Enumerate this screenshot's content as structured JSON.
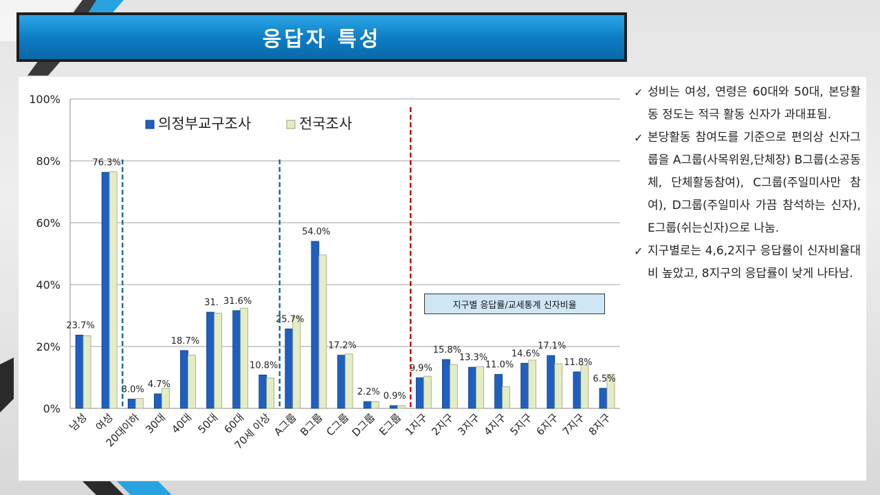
{
  "title": "응답자 특성",
  "legend": {
    "series1": "의정부교구조사",
    "series2": "전국조사"
  },
  "annotation_box": "지구별 응답률/교세통계 신자비율",
  "bullets": [
    "성비는 여성, 연령은 60대와 50대, 본당활동 정도는 적극 활동 신자가 과대표됨.",
    "본당활동 참여도를 기준으로 편의상 신자그룹을 A그룹(사목위원,단체장) B그룹(소공동체, 단체활동참여), C그룹(주일미사만 참여), D그룹(주일미사 가끔 참석하는 신자), E그룹(쉬는신자)으로 나눔.",
    "지구별로는 4,6,2지구 응답률이 신자비율대비 높았고, 8지구의 응답률이 낮게 나타남."
  ],
  "chart_data": {
    "type": "bar",
    "categories": [
      "남성",
      "여성",
      "20대이하",
      "30대",
      "40대",
      "50대",
      "60대",
      "70세 이상",
      "A그룹",
      "B그룹",
      "C그룹",
      "D그룹",
      "E그룹",
      "1지구",
      "2지구",
      "3지구",
      "4지구",
      "5지구",
      "6지구",
      "7지구",
      "8지구"
    ],
    "series": [
      {
        "name": "의정부교구조사",
        "color": "#1f5fbf",
        "values": [
          23.7,
          76.3,
          3.0,
          4.7,
          18.7,
          31.1,
          31.6,
          10.8,
          25.7,
          54.0,
          17.2,
          2.2,
          0.9,
          9.9,
          15.8,
          13.3,
          11.0,
          14.6,
          17.1,
          11.8,
          6.5
        ]
      },
      {
        "name": "전국조사",
        "color": "#e3ecc4",
        "values": [
          23.5,
          76.5,
          3.2,
          6.5,
          17.2,
          30.8,
          32.4,
          9.8,
          29.6,
          49.6,
          17.6,
          2.2,
          0.9,
          10.4,
          14.2,
          13.5,
          7.0,
          15.6,
          14.4,
          14.0,
          11.0
        ]
      }
    ],
    "data_labels": [
      "23.7%",
      "76.3%",
      "3.0%",
      "4.7%",
      "18.7%",
      "31.",
      "31.6%",
      "10.8%",
      "25.7%",
      "54.0%",
      "17.2%",
      "2.2%",
      "0.9%",
      "9.9%",
      "15.8%",
      "13.3%",
      "11.0%",
      "14.6%",
      "17.1%",
      "11.8%",
      "6.5%"
    ],
    "y_ticks": [
      "0%",
      "20%",
      "40%",
      "60%",
      "80%",
      "100%"
    ],
    "ylim": [
      0,
      100
    ],
    "grid": true,
    "legend_position": "top-left",
    "separators": [
      {
        "after_category": "여성",
        "style": "dashed",
        "color": "#1f6f8b"
      },
      {
        "after_category": "70세 이상",
        "style": "dashed",
        "color": "#1f6f8b"
      },
      {
        "after_category": "E그룹",
        "style": "dashed",
        "color": "#c00000"
      }
    ]
  }
}
